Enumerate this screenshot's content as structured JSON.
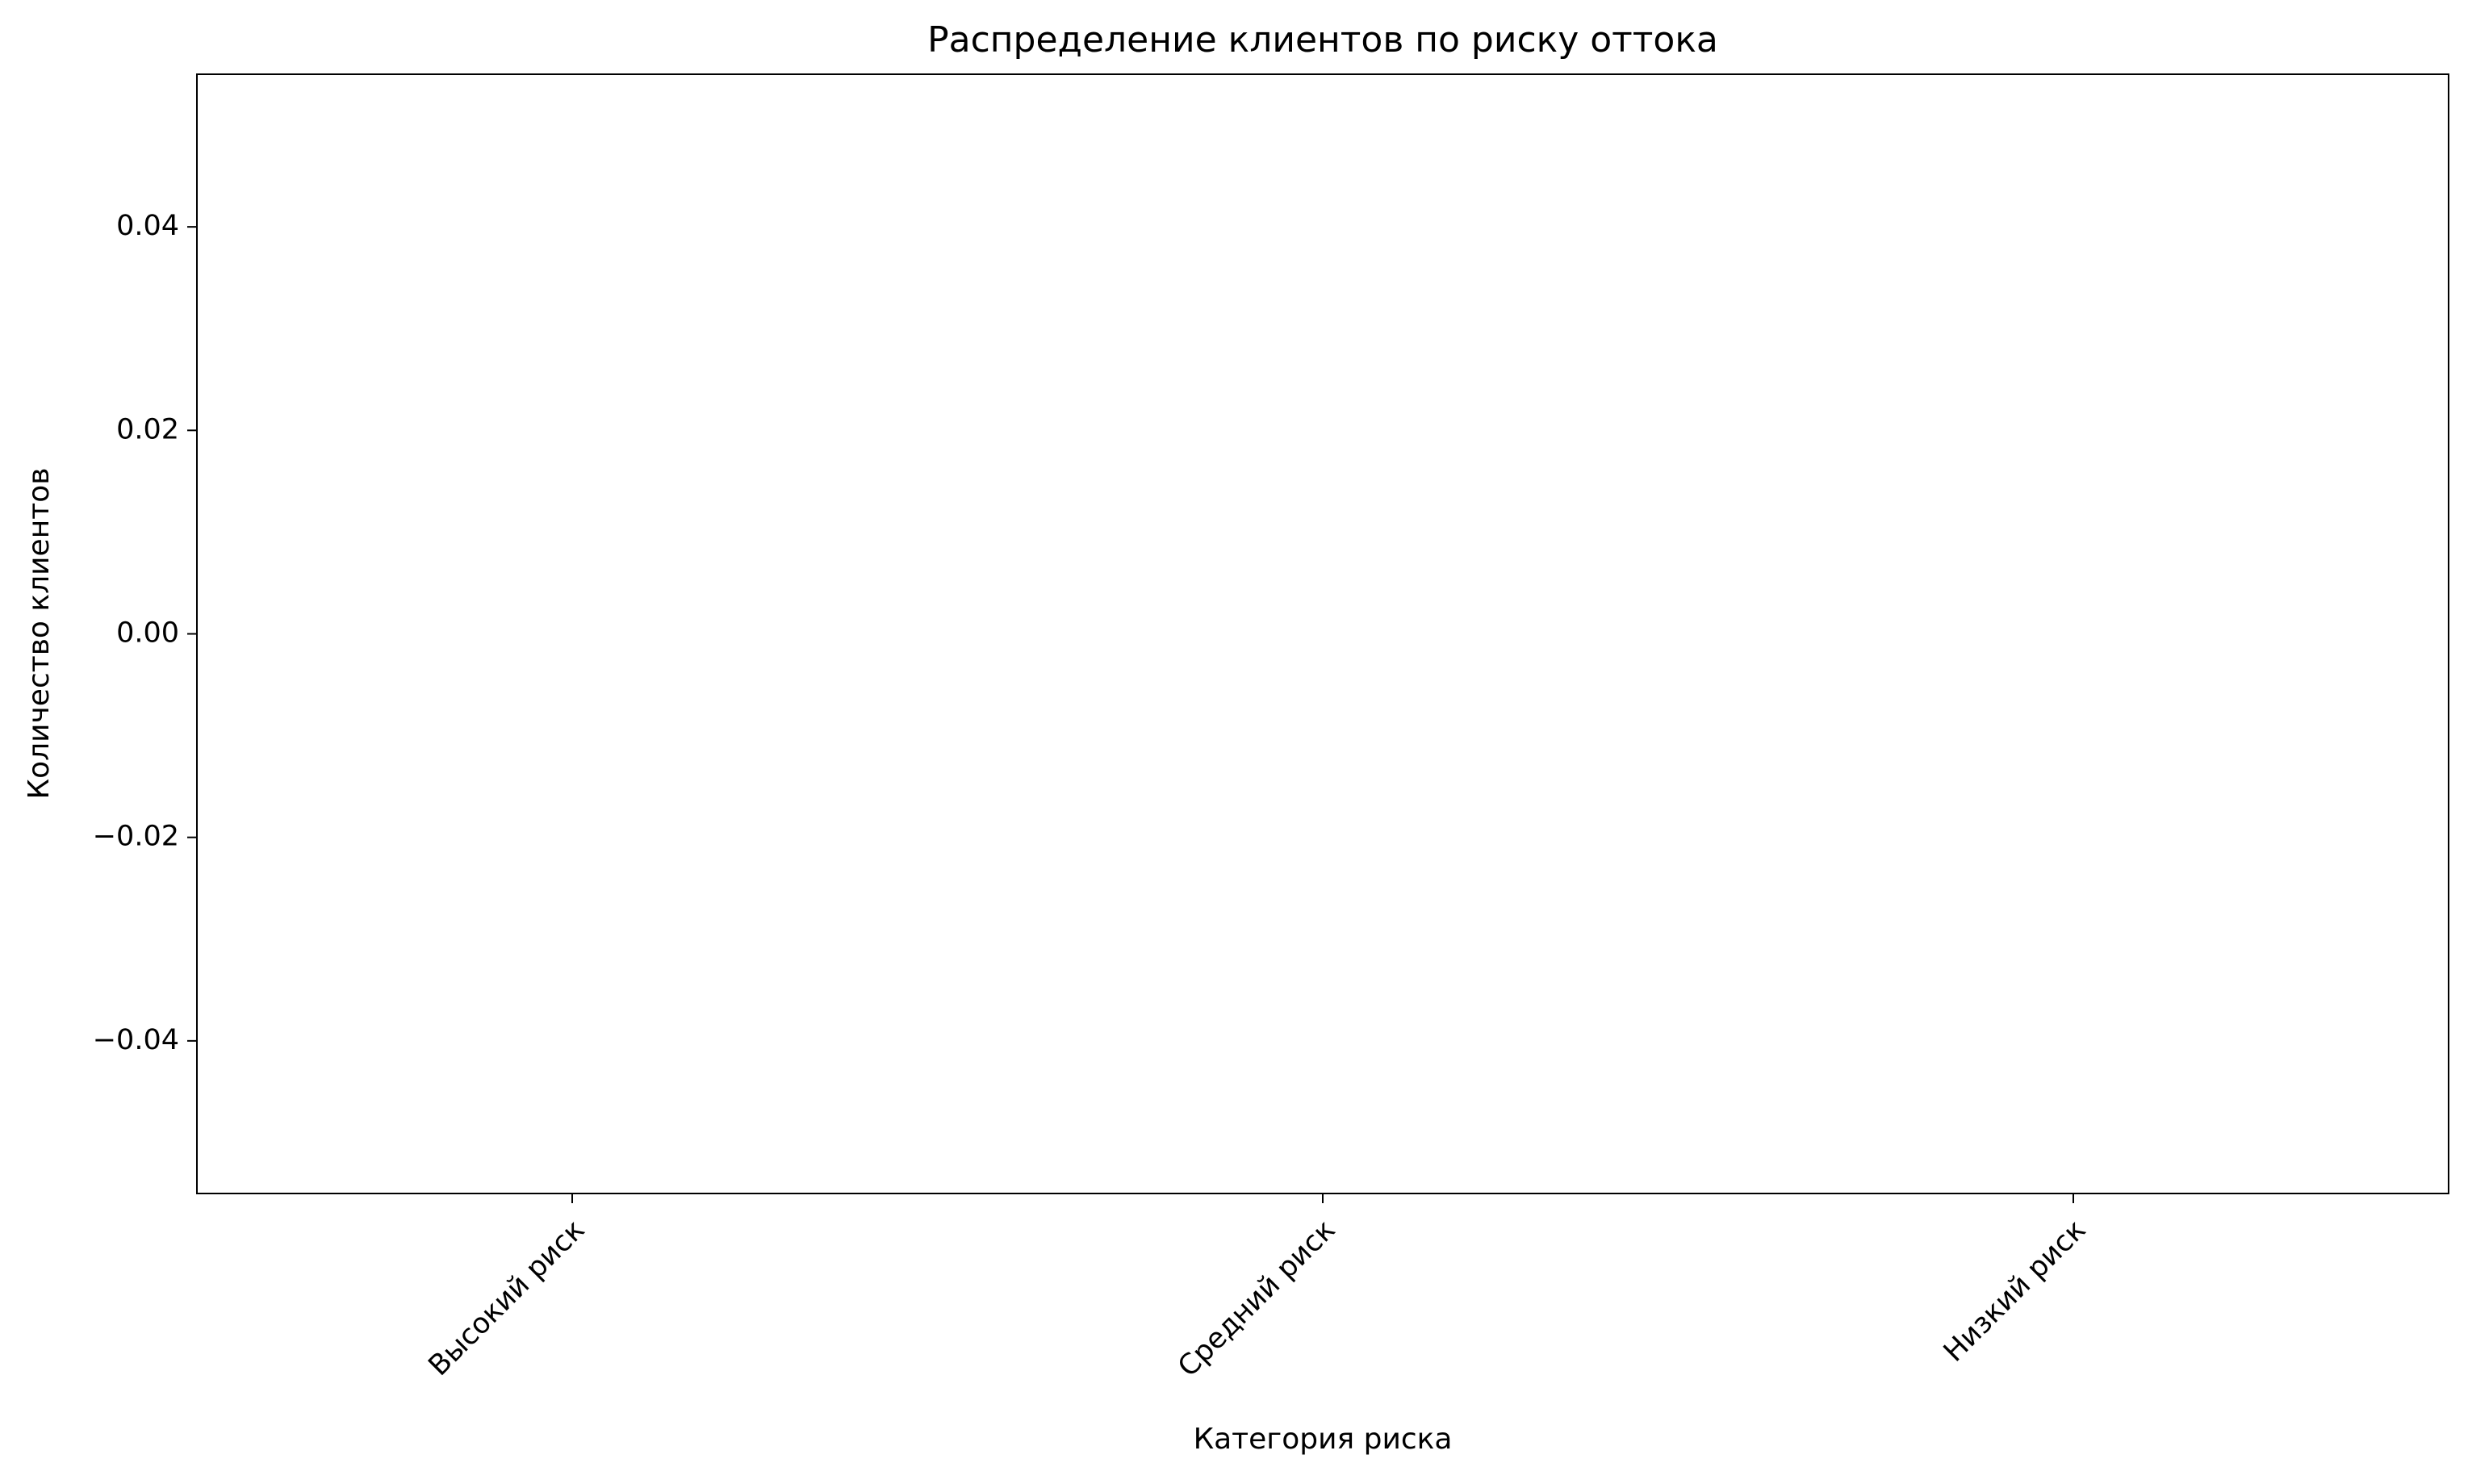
{
  "chart_data": {
    "type": "bar",
    "title": "Распределение клиентов по риску оттока",
    "x_label": "Категория риска",
    "y_label": "Количество клиентов",
    "categories": [
      "Высокий риск",
      "Средний риск",
      "Низкий риск"
    ],
    "values": [
      0,
      0,
      0
    ],
    "ylim": [
      -0.055,
      0.055
    ],
    "yticks": [
      {
        "value": -0.04,
        "label": "−0.04"
      },
      {
        "value": -0.02,
        "label": "−0.02"
      },
      {
        "value": 0,
        "label": "0.00"
      },
      0.02,
      0.04
    ],
    "grid": false
  }
}
